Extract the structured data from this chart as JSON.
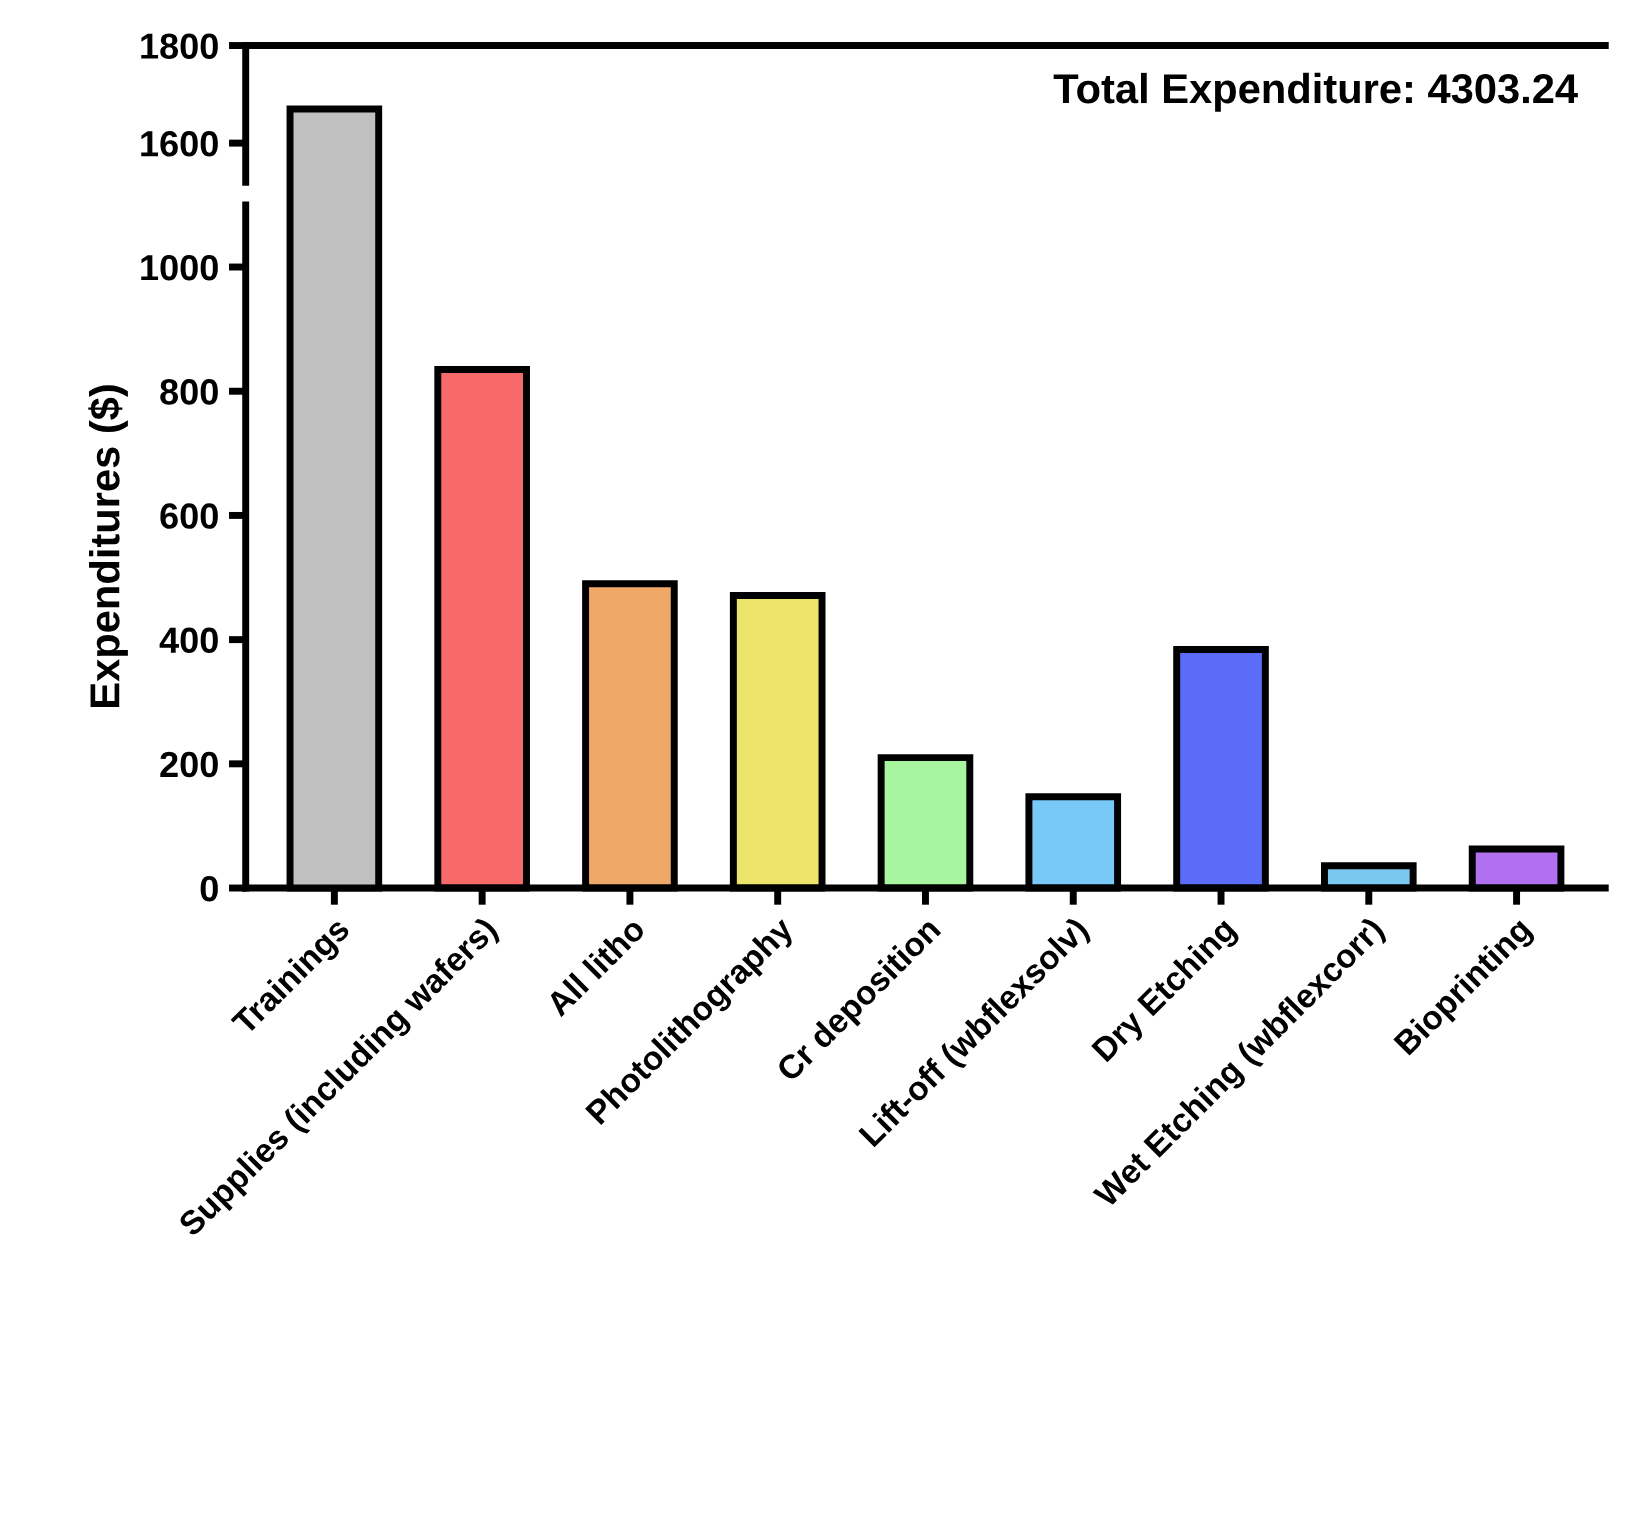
{
  "chart_data": [
    {
      "type": "bar",
      "categories": [
        null,
        null,
        null,
        null,
        null,
        null,
        null,
        null,
        null
      ],
      "colors": [
        "#c0c0c0",
        "#f86a6a",
        "#f0a868",
        "#ece46c",
        "#a8f5a0",
        "#78c8f8",
        "#5b6cf8",
        "#78c8f0",
        "#b070f0"
      ],
      "values": [
        1670,
        null,
        null,
        null,
        null,
        null,
        null,
        null,
        null
      ],
      "ylim": [
        1520,
        1800
      ],
      "yticks": [
        1600,
        1800
      ],
      "grid": false,
      "annotations": [
        "Total Expenditure: 4303.24"
      ]
    },
    {
      "type": "bar",
      "categories": [
        "Trainings",
        "Supplies (including wafers)",
        "All litho",
        "Photolithography",
        "Cr deposition",
        "Lift-off (wbflexsolv)",
        "Dry Etching",
        "Wet Etching (wbflexcorr)",
        "Bioprinting"
      ],
      "colors": [
        "#c0c0c0",
        "#f86a6a",
        "#f0a868",
        "#ece46c",
        "#a8f5a0",
        "#78c8f8",
        "#5b6cf8",
        "#78c8f0",
        "#b070f0"
      ],
      "values": [
        null,
        835,
        490,
        471,
        210,
        147,
        384,
        36,
        63
      ],
      "ylim": [
        0,
        1100
      ],
      "yticks": [
        0,
        200,
        400,
        600,
        800,
        1000
      ],
      "ylabel": "Expenditures ($)",
      "grid": false
    }
  ]
}
